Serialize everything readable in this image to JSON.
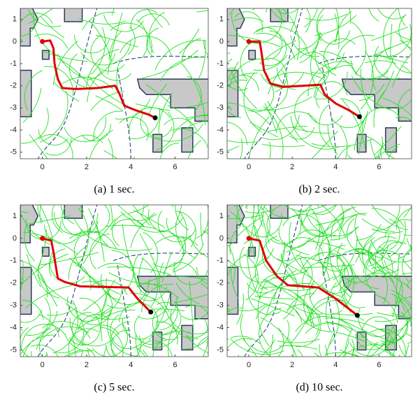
{
  "chart_data": [
    {
      "type": "line",
      "caption": "(a)  1 sec.",
      "color": "#e00000",
      "x": [
        0,
        0.35,
        0.5,
        0.55,
        0.7,
        0.9,
        1.5,
        2.5,
        3.3,
        3.5,
        3.7,
        4.2,
        4.8,
        5.1
      ],
      "values": [
        0,
        0.05,
        -0.3,
        -1,
        -1.7,
        -2.1,
        -2.15,
        -2.1,
        -2.0,
        -2.4,
        -2.9,
        -3.1,
        -3.3,
        -3.45
      ],
      "xlim": [
        -1,
        7.5
      ],
      "ylim": [
        -5.3,
        1.5
      ],
      "xticks": [
        0,
        2,
        4,
        6
      ],
      "yticks": [
        1,
        0,
        -1,
        -2,
        -3,
        -4,
        -5
      ]
    },
    {
      "type": "line",
      "caption": "(b)  2 sec.",
      "color": "#e00000",
      "x": [
        0,
        0.5,
        0.6,
        0.7,
        1.0,
        1.6,
        2.5,
        3.3,
        3.5,
        4.0,
        4.6,
        5.1
      ],
      "values": [
        0,
        0,
        -0.6,
        -1.3,
        -1.9,
        -2.05,
        -2.0,
        -1.95,
        -2.4,
        -2.8,
        -3.1,
        -3.4
      ],
      "xlim": [
        -1,
        7.5
      ],
      "ylim": [
        -5.3,
        1.5
      ],
      "xticks": [
        0,
        2,
        4,
        6
      ],
      "yticks": [
        1,
        0,
        -1,
        -2,
        -3,
        -4,
        -5
      ]
    },
    {
      "type": "line",
      "caption": "(c)  5 sec.",
      "color": "#e00000",
      "x": [
        0,
        0.4,
        0.5,
        0.7,
        1.0,
        1.7,
        3.9,
        4.3,
        4.9
      ],
      "values": [
        0,
        -0.1,
        -0.6,
        -1.8,
        -1.95,
        -2.15,
        -2.2,
        -2.7,
        -3.3
      ],
      "xlim": [
        -1,
        7.5
      ],
      "ylim": [
        -5.3,
        1.5
      ],
      "xticks": [
        0,
        2,
        4,
        6
      ],
      "yticks": [
        1,
        0,
        -1,
        -2,
        -3,
        -4,
        -5
      ]
    },
    {
      "type": "line",
      "caption": "(d)  10 sec.",
      "color": "#e00000",
      "x": [
        0,
        0.5,
        0.8,
        1.3,
        1.8,
        3.2,
        4.0,
        5.0
      ],
      "values": [
        0,
        -0.1,
        -1.0,
        -1.7,
        -2.1,
        -2.2,
        -2.7,
        -3.45
      ],
      "xlim": [
        -1,
        7.5
      ],
      "ylim": [
        -5.3,
        1.5
      ],
      "xticks": [
        0,
        2,
        4,
        6
      ],
      "yticks": [
        1,
        0,
        -1,
        -2,
        -3,
        -4,
        -5
      ]
    }
  ]
}
